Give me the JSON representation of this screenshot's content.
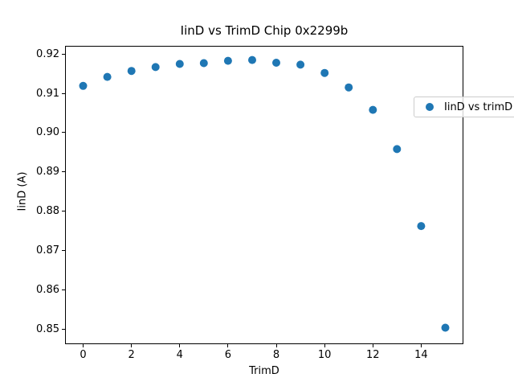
{
  "chart_data": {
    "type": "scatter",
    "title": "IinD vs TrimD Chip 0x2299b",
    "xlabel": "TrimD",
    "ylabel": "IinD (A)",
    "legend": {
      "label": "IinD vs trimD",
      "position": "upper right",
      "marker": "filled-circle"
    },
    "x": [
      0,
      1,
      2,
      3,
      4,
      5,
      6,
      7,
      8,
      9,
      10,
      11,
      12,
      13,
      14,
      15
    ],
    "y": [
      0.9119,
      0.9142,
      0.9157,
      0.9167,
      0.9175,
      0.9177,
      0.9183,
      0.9185,
      0.9178,
      0.9173,
      0.9152,
      0.9115,
      0.9058,
      0.8958,
      0.8762,
      0.8503
    ],
    "xlim": [
      -0.75,
      15.75
    ],
    "ylim": [
      0.8461,
      0.9221
    ],
    "x_ticks": [
      0,
      2,
      4,
      6,
      8,
      10,
      12,
      14
    ],
    "y_ticks": [
      0.85,
      0.86,
      0.87,
      0.88,
      0.89,
      0.9,
      0.91,
      0.92
    ],
    "y_tick_decimals": 2,
    "marker_color": "#1f77b4",
    "marker_radius_px": 5,
    "grid": false,
    "background_color": "#ffffff",
    "spine_color": "#000000"
  }
}
